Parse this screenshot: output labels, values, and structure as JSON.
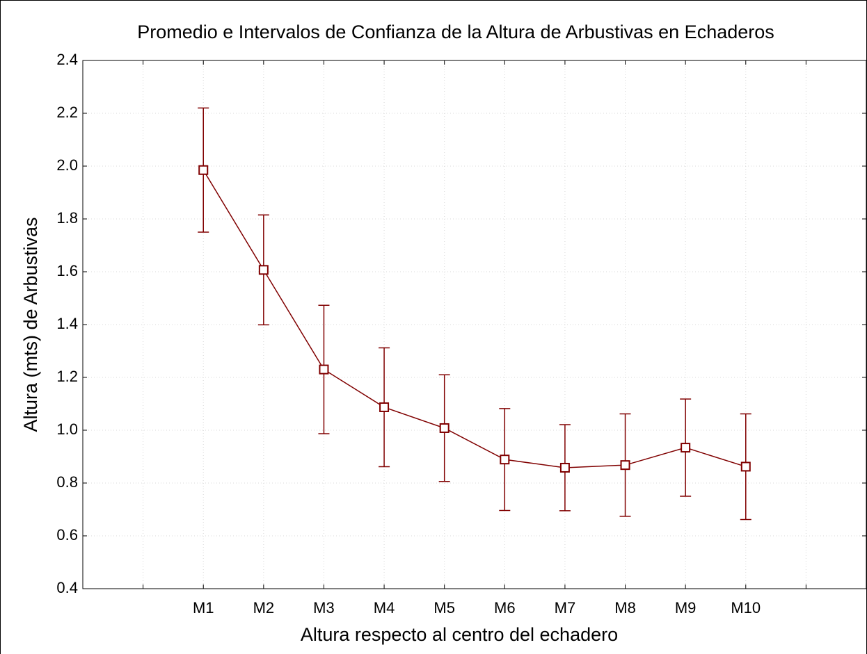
{
  "chart_data": {
    "type": "errorbar-line",
    "title": "Promedio e Intervalos de Confianza de la Altura de Arbustivas en Echaderos",
    "x_label": "Altura respecto al centro del echadero",
    "y_label": "Altura (mts) de Arbustivas",
    "categories": [
      null,
      "M1",
      "M2",
      "M3",
      "M4",
      "M5",
      "M6",
      "M7",
      "M8",
      "M9",
      "M10",
      null
    ],
    "values": [
      null,
      1.985,
      1.607,
      1.23,
      1.087,
      1.008,
      0.889,
      0.858,
      0.868,
      0.934,
      0.862,
      null
    ],
    "errors": [
      null,
      0.235,
      0.208,
      0.243,
      0.225,
      0.202,
      0.193,
      0.163,
      0.194,
      0.184,
      0.2,
      null
    ],
    "color": "#800000",
    "ylim": [
      0.4,
      2.4
    ],
    "yticks": [
      0.4,
      0.6,
      0.8,
      {
        "value": 1,
        "label": "1.0"
      },
      1.2,
      1.4,
      1.6,
      1.8,
      {
        "value": 2,
        "label": "2.0"
      },
      2.2,
      2.4
    ],
    "grid": true
  }
}
